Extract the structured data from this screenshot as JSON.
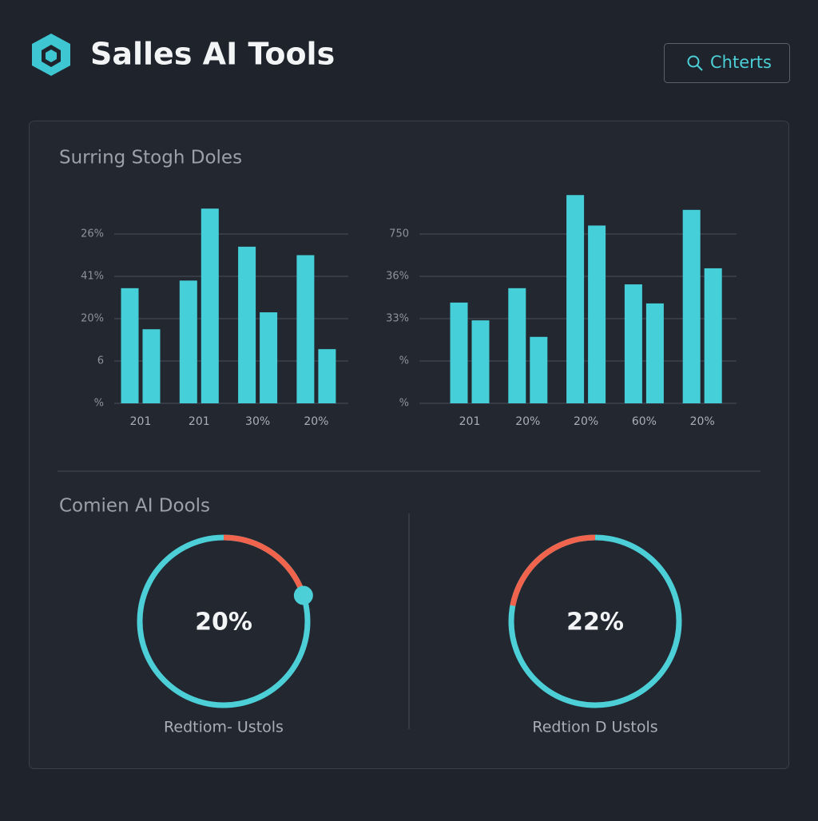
{
  "header": {
    "title": "Salles AI Tools",
    "button": "Chterts"
  },
  "sections": [
    {
      "title": "Surring Stogh Doles"
    },
    {
      "title": "Comien AI Dools"
    }
  ],
  "chart_data": [
    {
      "type": "bar",
      "categories": [
        "201",
        "201",
        "30%",
        "20%"
      ],
      "series": [
        {
          "color": "#45cfd9",
          "values": [
            2.72,
            2.9,
            3.7,
            3.5
          ]
        },
        {
          "color": "#45cfd9",
          "values": [
            1.75,
            4.6,
            2.15,
            1.28
          ]
        }
      ],
      "ylim": [
        0,
        5
      ],
      "yticks": [
        {
          "value": 0,
          "label": "%"
        },
        {
          "value": 1,
          "label": "6"
        },
        {
          "value": 2,
          "label": "20%"
        },
        {
          "value": 3,
          "label": "41%"
        },
        {
          "value": 4,
          "label": "26%"
        }
      ],
      "grid": true
    },
    {
      "type": "bar",
      "categories": [
        "201",
        "20%",
        "20%",
        "60%",
        "20%"
      ],
      "series": [
        {
          "color": "#45cfd9",
          "values": [
            2.38,
            2.72,
            4.92,
            2.81,
            4.57
          ]
        },
        {
          "color": "#45cfd9",
          "values": [
            1.96,
            1.57,
            4.2,
            2.36,
            3.19
          ]
        }
      ],
      "ylim": [
        0,
        5
      ],
      "yticks": [
        {
          "value": 0,
          "label": "%"
        },
        {
          "value": 1,
          "label": "%"
        },
        {
          "value": 2,
          "label": "33%"
        },
        {
          "value": 3,
          "label": "36%"
        },
        {
          "value": 4,
          "label": "750"
        }
      ],
      "grid": true
    },
    {
      "type": "gauge",
      "value": 20,
      "value_label": "20%",
      "label": "Redtiom- Ustols",
      "color": "#f0644d",
      "track_color": "#4ccfd6",
      "direction": "clockwise",
      "end_marker": true
    },
    {
      "type": "gauge",
      "value": 22,
      "value_label": "22%",
      "label": "Redtion D Ustols",
      "color": "#f0644d",
      "track_color": "#4ccfd6",
      "direction": "counterclockwise",
      "end_marker": false
    }
  ]
}
